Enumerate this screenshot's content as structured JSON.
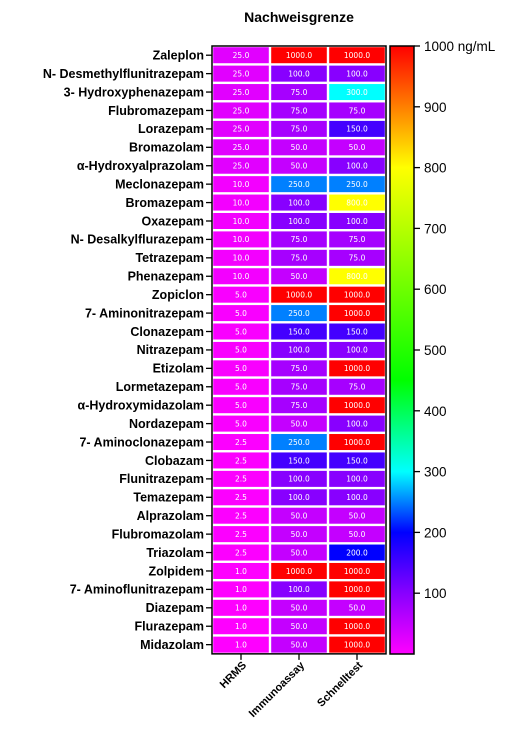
{
  "chart_data": {
    "type": "heatmap",
    "title": "Nachweisgrenze",
    "columns": [
      "HRMS",
      "Immunoassay",
      "Schnelltest"
    ],
    "rows": [
      "Zaleplon",
      "N- Desmethylflunitrazepam",
      "3- Hydroxyphenazepam",
      "Flubromazepam",
      "Lorazepam",
      "Bromazolam",
      "α-Hydroxyalprazolam",
      "Meclonazepam",
      "Bromazepam",
      "Oxazepam",
      "N- Desalkylflurazepam",
      "Tetrazepam",
      "Phenazepam",
      "Zopiclon",
      "7- Aminonitrazepam",
      "Clonazepam",
      "Nitrazepam",
      "Etizolam",
      "Lormetazepam",
      "α-Hydroxymidazolam",
      "Nordazepam",
      "7- Aminoclonazepam",
      "Clobazam",
      "Flunitrazepam",
      "Temazepam",
      "Alprazolam",
      "Flubromazolam",
      "Triazolam",
      "Zolpidem",
      "7- Aminoflunitrazepam",
      "Diazepam",
      "Flurazepam",
      "Midazolam"
    ],
    "values": [
      [
        25,
        1000,
        1000
      ],
      [
        25,
        100,
        100
      ],
      [
        25,
        75,
        300
      ],
      [
        25,
        75,
        75
      ],
      [
        25,
        75,
        150
      ],
      [
        25,
        50,
        50
      ],
      [
        25,
        50,
        100
      ],
      [
        10,
        250,
        250
      ],
      [
        10,
        100,
        800
      ],
      [
        10,
        100,
        100
      ],
      [
        10,
        75,
        75
      ],
      [
        10,
        75,
        75
      ],
      [
        10,
        50,
        800
      ],
      [
        5,
        1000,
        1000
      ],
      [
        5,
        250,
        1000
      ],
      [
        5,
        150,
        150
      ],
      [
        5,
        100,
        100
      ],
      [
        5,
        75,
        1000
      ],
      [
        5,
        75,
        75
      ],
      [
        5,
        75,
        1000
      ],
      [
        5,
        50,
        100
      ],
      [
        2.5,
        250,
        1000
      ],
      [
        2.5,
        150,
        150
      ],
      [
        2.5,
        100,
        100
      ],
      [
        2.5,
        100,
        100
      ],
      [
        2.5,
        50,
        50
      ],
      [
        2.5,
        50,
        50
      ],
      [
        2.5,
        50,
        200
      ],
      [
        1,
        1000,
        1000
      ],
      [
        1,
        100,
        1000
      ],
      [
        1,
        50,
        50
      ],
      [
        1,
        50,
        1000
      ],
      [
        1,
        50,
        1000
      ]
    ],
    "value_labels": [
      [
        "25.0",
        "1000.0",
        "1000.0"
      ],
      [
        "25.0",
        "100.0",
        "100.0"
      ],
      [
        "25.0",
        "75.0",
        "300.0"
      ],
      [
        "25.0",
        "75.0",
        "75.0"
      ],
      [
        "25.0",
        "75.0",
        "150.0"
      ],
      [
        "25.0",
        "50.0",
        "50.0"
      ],
      [
        "25.0",
        "50.0",
        "100.0"
      ],
      [
        "10.0",
        "250.0",
        "250.0"
      ],
      [
        "10.0",
        "100.0",
        "800.0"
      ],
      [
        "10.0",
        "100.0",
        "100.0"
      ],
      [
        "10.0",
        "75.0",
        "75.0"
      ],
      [
        "10.0",
        "75.0",
        "75.0"
      ],
      [
        "10.0",
        "50.0",
        "800.0"
      ],
      [
        "5.0",
        "1000.0",
        "1000.0"
      ],
      [
        "5.0",
        "250.0",
        "1000.0"
      ],
      [
        "5.0",
        "150.0",
        "150.0"
      ],
      [
        "5.0",
        "100.0",
        "100.0"
      ],
      [
        "5.0",
        "75.0",
        "1000.0"
      ],
      [
        "5.0",
        "75.0",
        "75.0"
      ],
      [
        "5.0",
        "75.0",
        "1000.0"
      ],
      [
        "5.0",
        "50.0",
        "100.0"
      ],
      [
        "2.5",
        "250.0",
        "1000.0"
      ],
      [
        "2.5",
        "150.0",
        "150.0"
      ],
      [
        "2.5",
        "100.0",
        "100.0"
      ],
      [
        "2.5",
        "100.0",
        "100.0"
      ],
      [
        "2.5",
        "50.0",
        "50.0"
      ],
      [
        "2.5",
        "50.0",
        "50.0"
      ],
      [
        "2.5",
        "50.0",
        "200.0"
      ],
      [
        "1.0",
        "1000.0",
        "1000.0"
      ],
      [
        "1.0",
        "100.0",
        "1000.0"
      ],
      [
        "1.0",
        "50.0",
        "50.0"
      ],
      [
        "1.0",
        "50.0",
        "1000.0"
      ],
      [
        "1.0",
        "50.0",
        "1000.0"
      ]
    ],
    "colorbar": {
      "range": [
        0,
        1000
      ],
      "ticks": [
        1000,
        900,
        800,
        700,
        600,
        500,
        400,
        300,
        200,
        100
      ],
      "tick_labels": [
        "1000 ng/mL",
        "900",
        "800",
        "700",
        "600",
        "500",
        "400",
        "300",
        "200",
        "100"
      ],
      "colormap": [
        "#ff00ff",
        "#8800ff",
        "#0000ff",
        "#00ffff",
        "#00ff00",
        "#ffff00",
        "#ff0000"
      ]
    }
  }
}
